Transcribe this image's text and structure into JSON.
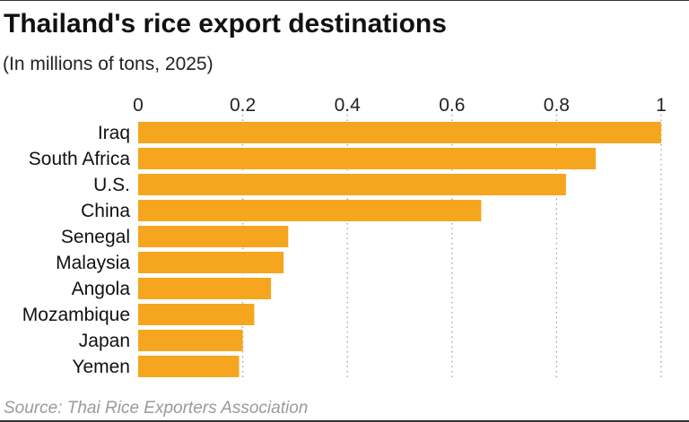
{
  "title": "Thailand's rice export destinations",
  "subtitle": "(In millions of tons, 2025)",
  "source": "Source: Thai Rice Exporters Association",
  "colors": {
    "bar": "#f5a61e",
    "grid": "#9a9a9a",
    "text": "#111111"
  },
  "chart_data": {
    "type": "bar",
    "orientation": "horizontal",
    "title": "Thailand's rice export destinations",
    "subtitle": "(In millions of tons, 2025)",
    "xlabel": "",
    "ylabel": "",
    "xlim": [
      0,
      1
    ],
    "ticks": [
      0,
      0.2,
      0.4,
      0.6,
      0.8,
      1
    ],
    "tick_labels": [
      "0",
      "0.2",
      "0.4",
      "0.6",
      "0.8",
      "1"
    ],
    "grid": "vertical dotted",
    "categories": [
      "Iraq",
      "South Africa",
      "U.S.",
      "China",
      "Senegal",
      "Malaysia",
      "Angola",
      "Mozambique",
      "Japan",
      "Yemen"
    ],
    "values": [
      1.0,
      0.875,
      0.818,
      0.656,
      0.287,
      0.278,
      0.254,
      0.222,
      0.2,
      0.193
    ]
  }
}
